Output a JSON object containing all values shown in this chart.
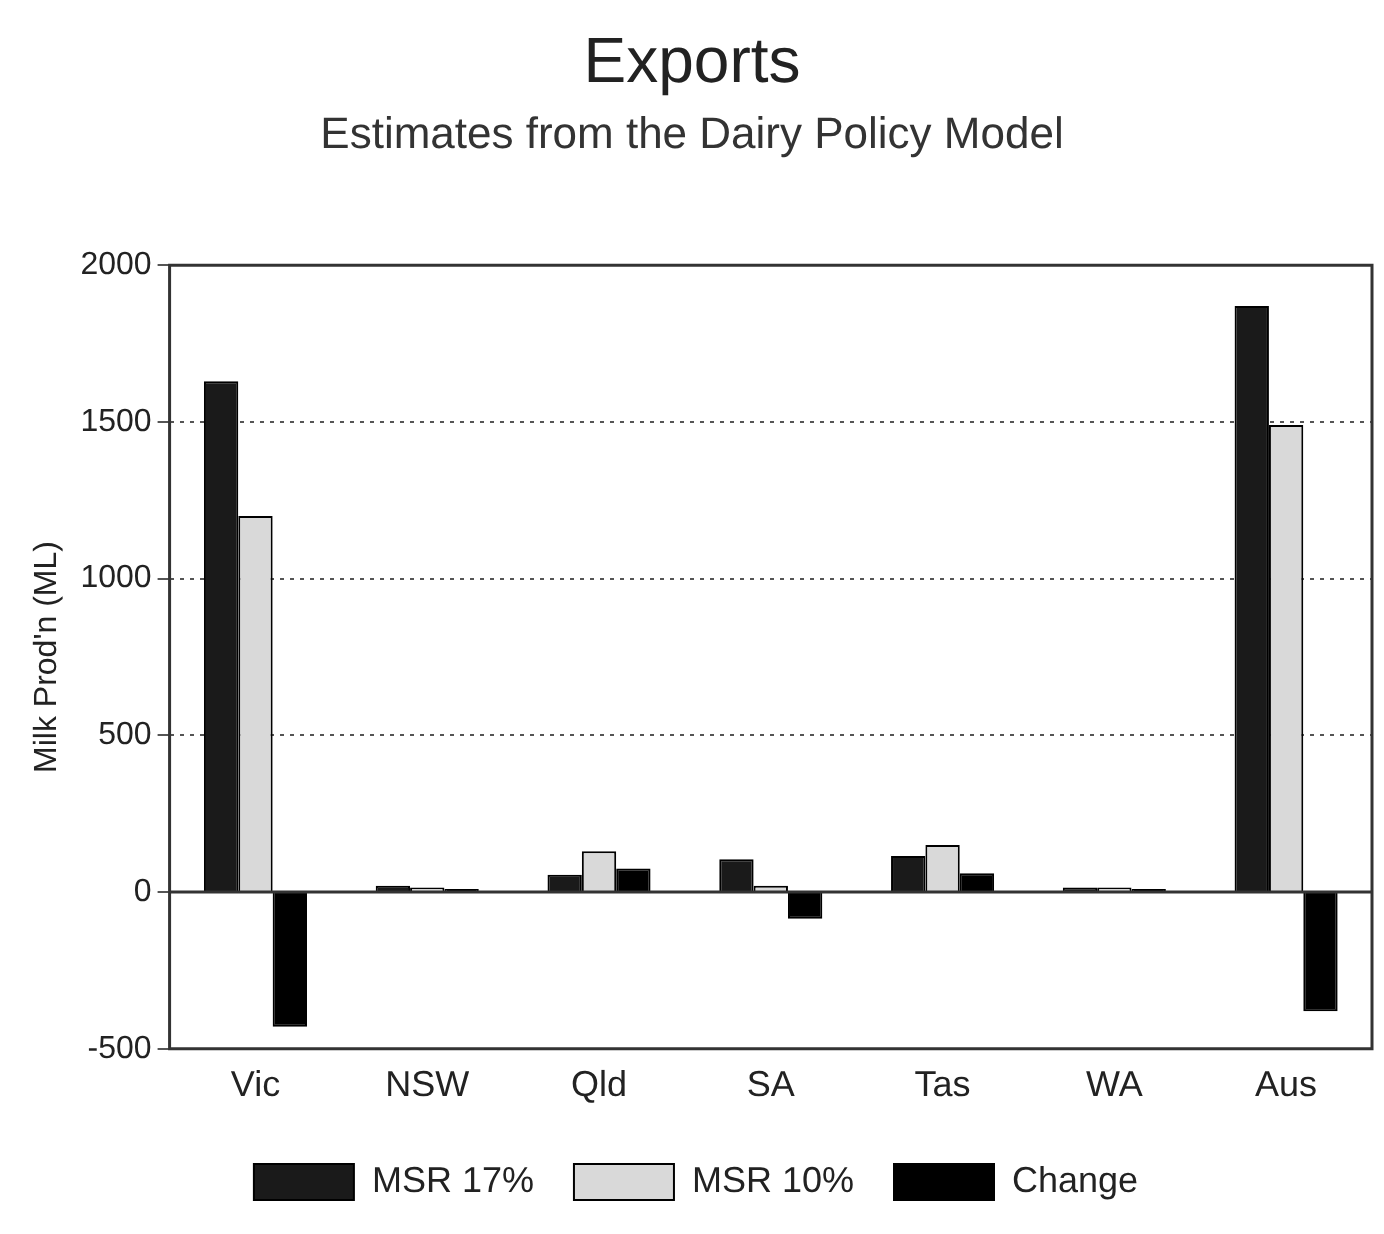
{
  "chart_data": {
    "type": "bar",
    "title": "Exports",
    "subtitle": "Estimates from the Dairy Policy Model",
    "ylabel": "Milk Prod'n (ML)",
    "categories": [
      "Vic",
      "NSW",
      "Qld",
      "SA",
      "Tas",
      "WA",
      "Aus"
    ],
    "series": [
      {
        "name": "MSR 17%",
        "color": "#1a1a1a",
        "values": [
          1630,
          20,
          55,
          105,
          115,
          15,
          1870
        ]
      },
      {
        "name": "MSR 10%",
        "color": "#d9d9d9",
        "values": [
          1200,
          15,
          130,
          20,
          150,
          15,
          1490
        ]
      },
      {
        "name": "Change",
        "color": "#000000",
        "values": [
          -430,
          10,
          75,
          -85,
          60,
          10,
          -380
        ]
      }
    ],
    "ylim": [
      -500,
      2000
    ],
    "yticks": [
      -500,
      0,
      500,
      1000,
      1500,
      2000
    ],
    "grid": "y",
    "line_style": "dotted",
    "legend": "bottom"
  }
}
